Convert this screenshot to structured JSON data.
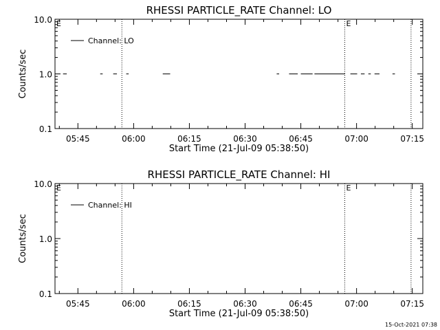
{
  "footer": {
    "timestamp": "15-Oct-2021 07:38"
  },
  "chart_data": [
    {
      "type": "line",
      "title": "RHESSI PARTICLE_RATE Channel: LO",
      "xlabel": "Start Time (21-Jul-09 05:38:50)",
      "ylabel": "Counts/sec",
      "yscale": "log",
      "xlim": [
        "05:38:50",
        "07:17:50"
      ],
      "ylim": [
        0.1,
        10.0
      ],
      "x_ticks": [
        "05:45",
        "06:00",
        "06:15",
        "06:30",
        "06:45",
        "07:00",
        "07:15"
      ],
      "y_ticks": [
        "0.1",
        "1.0",
        "10.0"
      ],
      "grid": false,
      "legend_position": "top-left",
      "markers": [
        {
          "label": "E",
          "time": "05:38:50"
        },
        {
          "label": "",
          "time": "05:56:50"
        },
        {
          "label": "E",
          "time": "06:56:50"
        },
        {
          "label": "",
          "time": "07:14:40"
        }
      ],
      "series": [
        {
          "name": "Channel: LO",
          "y": 1.0,
          "segments": [
            [
              "05:41:00",
              "05:42:00"
            ],
            [
              "05:51:00",
              "05:51:40"
            ],
            [
              "05:54:30",
              "05:55:30"
            ],
            [
              "05:58:00",
              "05:58:40"
            ],
            [
              "06:07:50",
              "06:09:50"
            ],
            [
              "06:38:30",
              "06:39:10"
            ],
            [
              "06:41:50",
              "06:44:10"
            ],
            [
              "06:45:00",
              "06:48:10"
            ],
            [
              "06:48:40",
              "06:56:50"
            ],
            [
              "06:58:20",
              "07:00:10"
            ],
            [
              "07:01:10",
              "07:02:10"
            ],
            [
              "07:03:10",
              "07:03:50"
            ],
            [
              "07:04:50",
              "07:06:10"
            ],
            [
              "07:09:40",
              "07:10:20"
            ]
          ]
        }
      ]
    },
    {
      "type": "line",
      "title": "RHESSI PARTICLE_RATE Channel: HI",
      "xlabel": "Start Time (21-Jul-09 05:38:50)",
      "ylabel": "Counts/sec",
      "yscale": "log",
      "xlim": [
        "05:38:50",
        "07:17:50"
      ],
      "ylim": [
        0.1,
        10.0
      ],
      "x_ticks": [
        "05:45",
        "06:00",
        "06:15",
        "06:30",
        "06:45",
        "07:00",
        "07:15"
      ],
      "y_ticks": [
        "0.1",
        "1.0",
        "10.0"
      ],
      "grid": false,
      "legend_position": "top-left",
      "markers": [
        {
          "label": "E",
          "time": "05:38:50"
        },
        {
          "label": "",
          "time": "05:56:50"
        },
        {
          "label": "E",
          "time": "06:56:50"
        },
        {
          "label": "",
          "time": "07:14:40"
        }
      ],
      "series": [
        {
          "name": "Channel: HI",
          "y": 1.0,
          "segments": []
        }
      ]
    }
  ]
}
